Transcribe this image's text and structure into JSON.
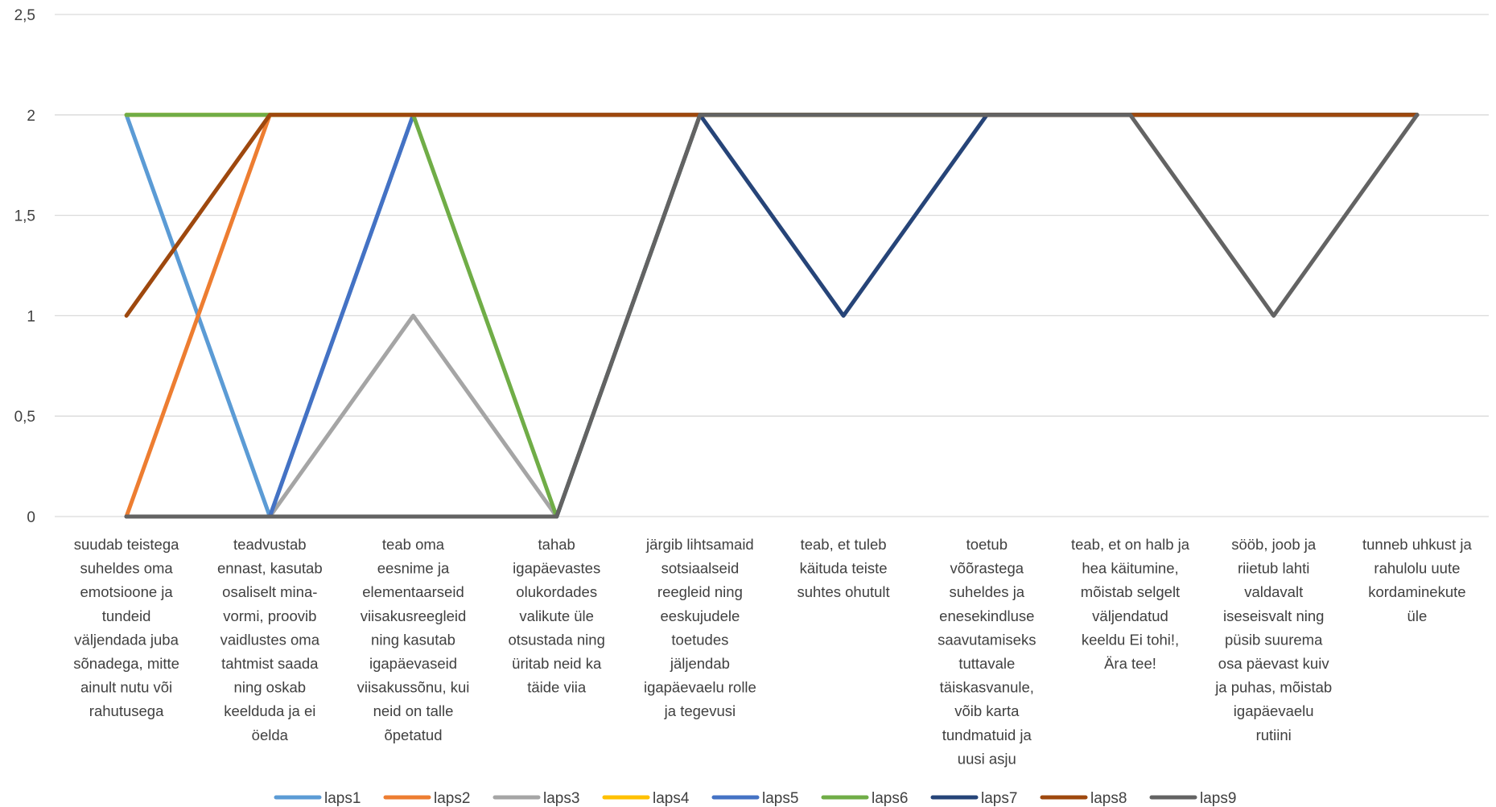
{
  "chart_data": {
    "type": "line",
    "title": "",
    "xlabel": "",
    "ylabel": "",
    "ylim": [
      0,
      2.5
    ],
    "yticks": [
      "0",
      "0,5",
      "1",
      "1,5",
      "2",
      "2,5"
    ],
    "grid": true,
    "legend_position": "bottom",
    "categories": [
      [
        "suudab teistega",
        "suheldes oma",
        "emotsioone ja",
        "tundeid",
        "väljendada juba",
        "sõnadega, mitte",
        "ainult nutu või",
        "rahutusega"
      ],
      [
        "teadvustab",
        "ennast, kasutab",
        "osaliselt mina-",
        "vormi, proovib",
        "vaidlustes oma",
        "tahtmist saada",
        "ning oskab",
        "keelduda ja ei",
        "öelda"
      ],
      [
        "teab oma",
        "eesnime ja",
        "elementaarseid",
        "viisakusreegleid",
        "ning kasutab",
        "igapäevaseid",
        "viisakussõnu, kui",
        "neid on talle",
        "õpetatud"
      ],
      [
        "tahab",
        "igapäevastes",
        "olukordades",
        "valikute üle",
        "otsustada ning",
        "üritab neid ka",
        "täide viia"
      ],
      [
        "järgib lihtsamaid",
        "sotsiaalseid",
        "reegleid ning",
        "eeskujudele",
        "toetudes",
        "jäljendab",
        "igapäevaelu rolle",
        "ja tegevusi"
      ],
      [
        "teab, et tuleb",
        "käituda teiste",
        "suhtes ohutult"
      ],
      [
        "toetub",
        "võõrastega",
        "suheldes ja",
        "enesekindluse",
        "saavutamiseks",
        "tuttavale",
        "täiskasvanule,",
        "võib karta",
        "tundmatuid ja",
        "uusi asju"
      ],
      [
        "teab, et on halb ja",
        "hea käitumine,",
        "mõistab selgelt",
        "väljendatud",
        "keeldu Ei tohi!,",
        "Ära tee!"
      ],
      [
        "sööb, joob ja",
        "riietub lahti",
        "valdavalt",
        "iseseisvalt ning",
        "püsib suurema",
        "osa päevast kuiv",
        "ja puhas, mõistab",
        "igapäevaelu",
        "rutiini"
      ],
      [
        "tunneb uhkust ja",
        "rahulolu uute",
        "kordaminekute",
        "üle"
      ]
    ],
    "series": [
      {
        "name": "laps1",
        "color": "#5B9BD5",
        "values": [
          2,
          0,
          2,
          2,
          2,
          2,
          2,
          2,
          2,
          2
        ]
      },
      {
        "name": "laps2",
        "color": "#ED7D31",
        "values": [
          0,
          2,
          2,
          2,
          2,
          2,
          2,
          2,
          2,
          2
        ]
      },
      {
        "name": "laps3",
        "color": "#A5A5A5",
        "values": [
          0,
          0,
          1,
          0,
          2,
          2,
          2,
          2,
          2,
          2
        ]
      },
      {
        "name": "laps4",
        "color": "#FFC000",
        "values": [
          2,
          2,
          2,
          2,
          2,
          2,
          2,
          2,
          2,
          2
        ]
      },
      {
        "name": "laps5",
        "color": "#4472C4",
        "values": [
          0,
          0,
          2,
          2,
          2,
          2,
          2,
          2,
          2,
          2
        ]
      },
      {
        "name": "laps6",
        "color": "#70AD47",
        "values": [
          2,
          2,
          2,
          0,
          2,
          2,
          2,
          2,
          2,
          2
        ]
      },
      {
        "name": "laps7",
        "color": "#264478",
        "values": [
          0,
          0,
          0,
          0,
          2,
          1,
          2,
          2,
          2,
          2
        ]
      },
      {
        "name": "laps8",
        "color": "#9E480E",
        "values": [
          1,
          2,
          2,
          2,
          2,
          2,
          2,
          2,
          2,
          2
        ]
      },
      {
        "name": "laps9",
        "color": "#636363",
        "values": [
          0,
          0,
          0,
          0,
          2,
          2,
          2,
          2,
          1,
          2
        ]
      }
    ]
  }
}
